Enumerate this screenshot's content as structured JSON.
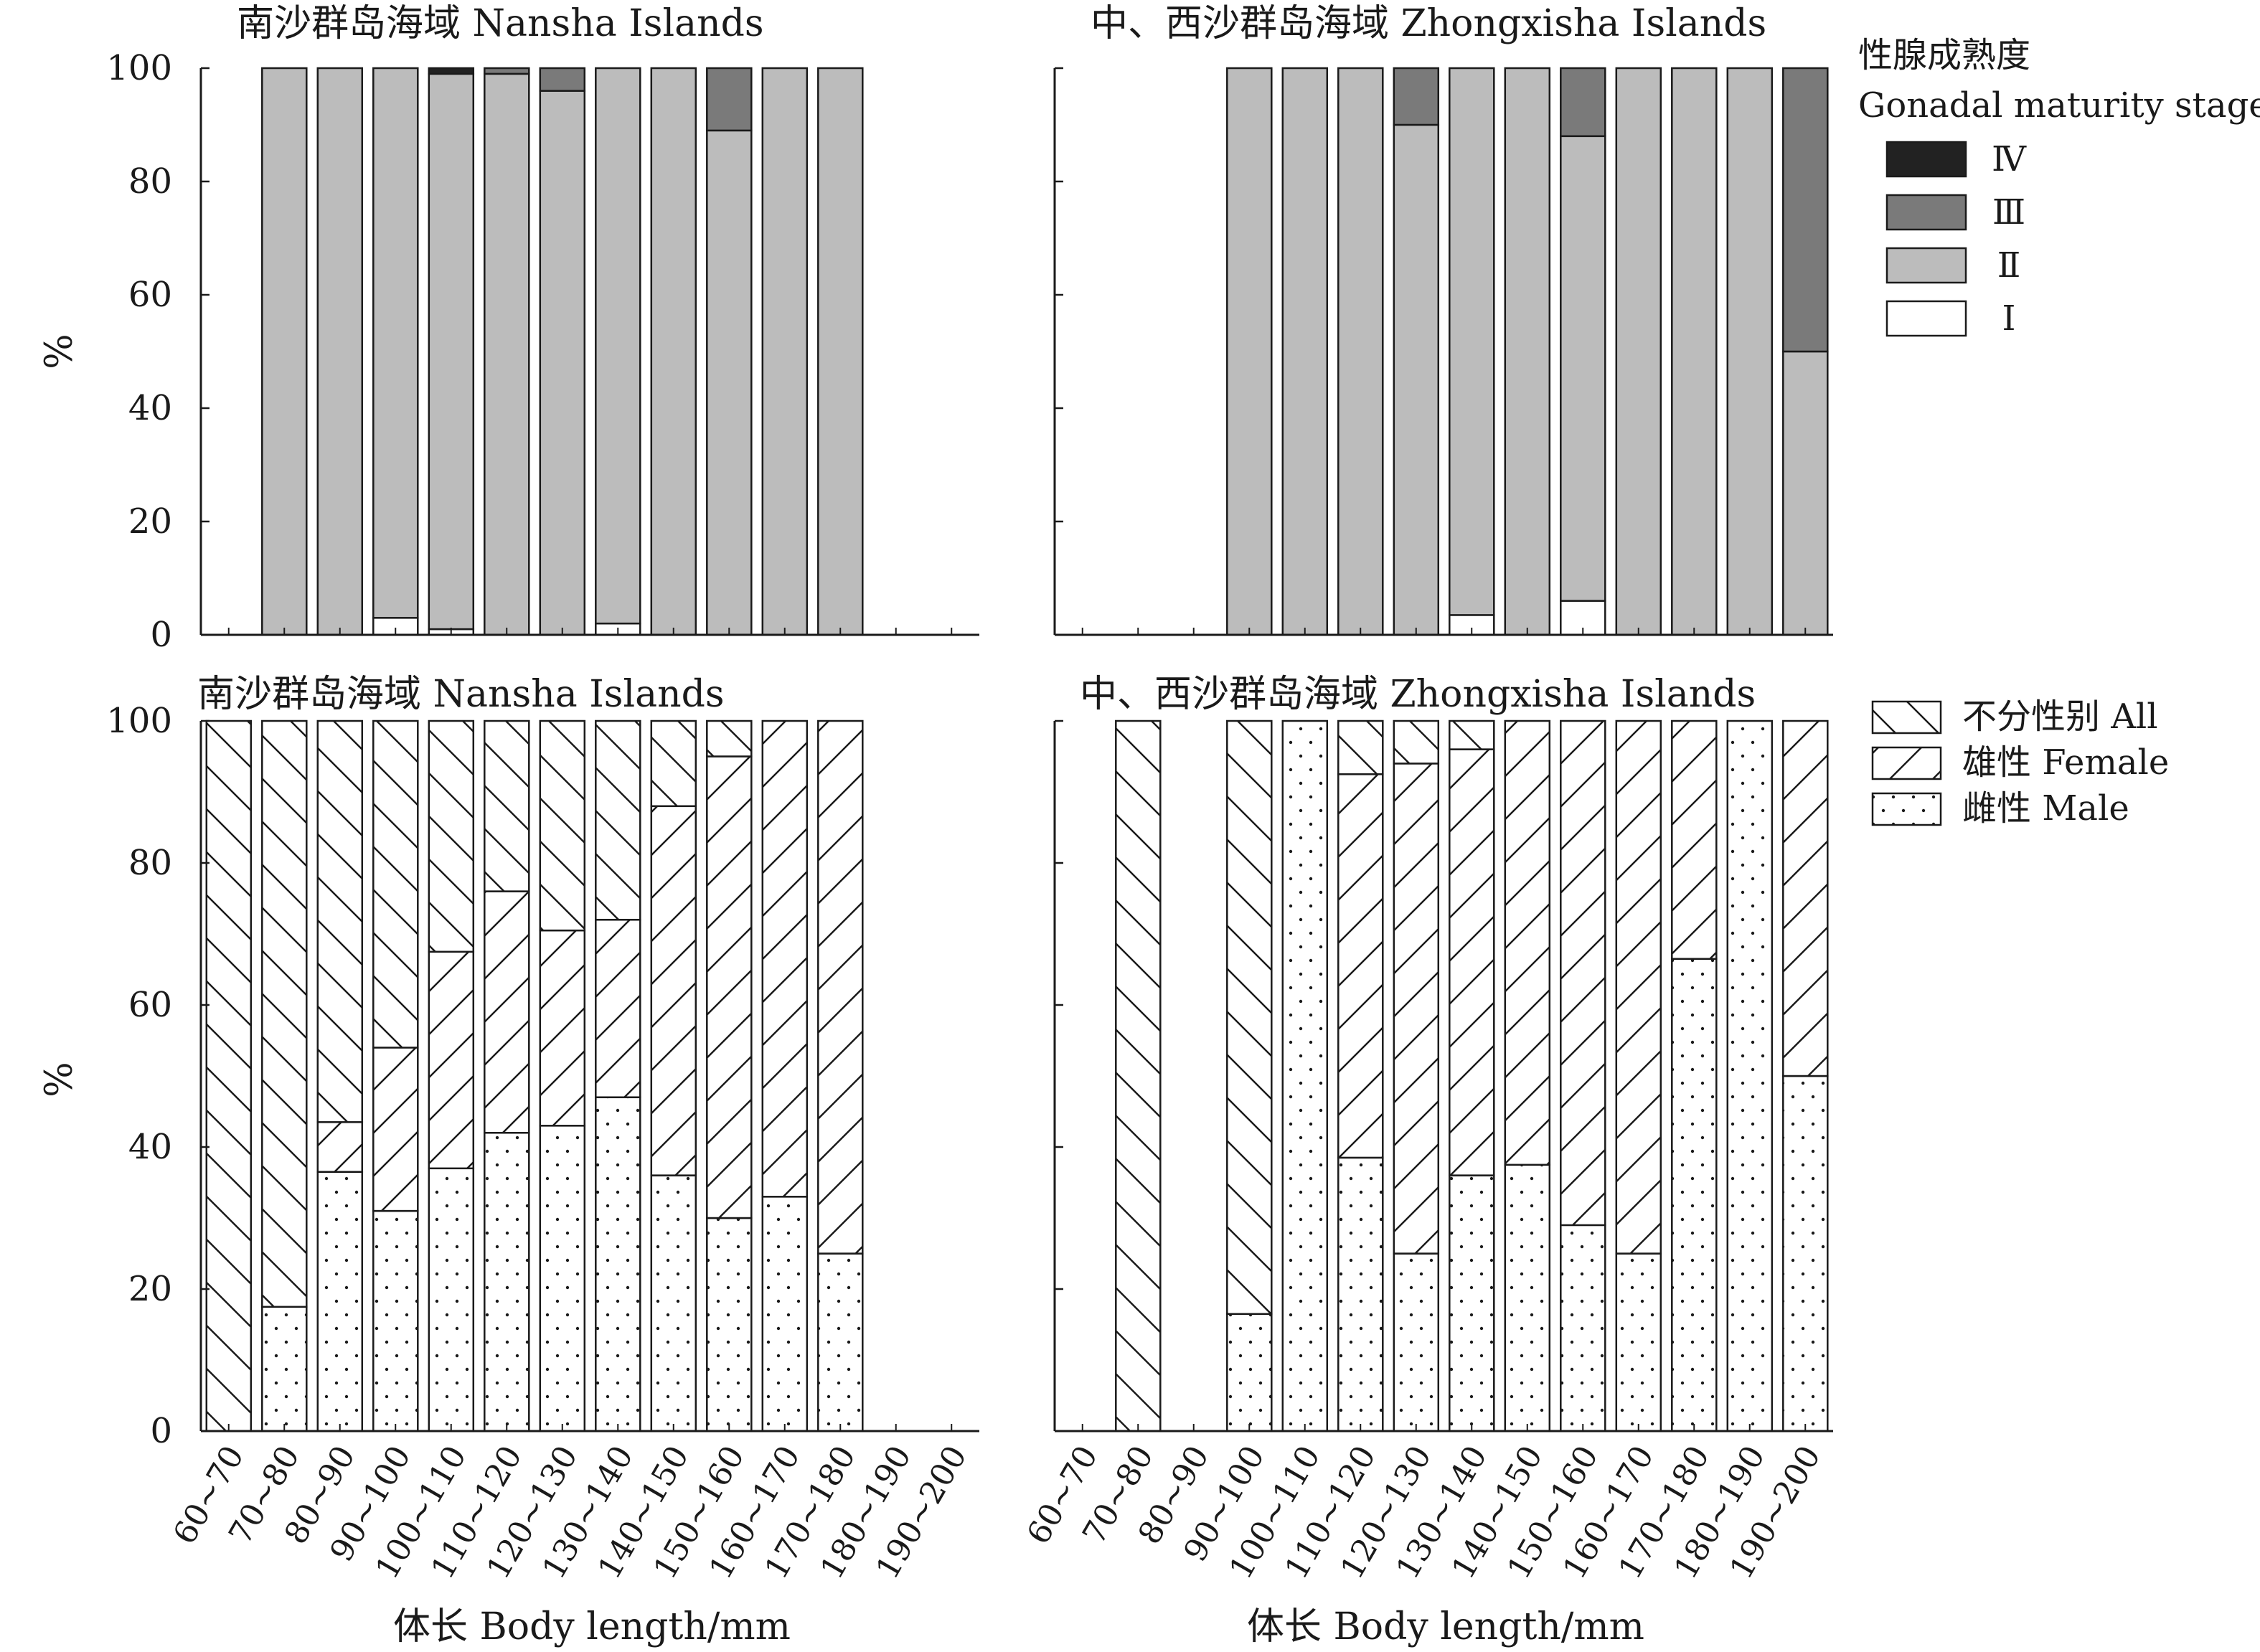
{
  "categories": [
    "60~70",
    "70~80",
    "80~90",
    "90~100",
    "100~110",
    "110~120",
    "120~130",
    "130~140",
    "140~150",
    "150~160",
    "160~170",
    "170~180",
    "180~190",
    "190~200"
  ],
  "colors": {
    "I": "#ffffff",
    "II": "#bcbcbc",
    "III": "#7a7a7a",
    "IV": "#222222",
    "axis": "#1a1a1a"
  },
  "chart_data": [
    {
      "type": "stacked-bar",
      "panel": "top-left",
      "title": "南沙群岛海域 Nansha Islands",
      "ylabel": "%",
      "ylim": [
        0,
        100
      ],
      "yticks": [
        0,
        20,
        40,
        60,
        80,
        100
      ],
      "categories": [
        "60~70",
        "70~80",
        "80~90",
        "90~100",
        "100~110",
        "110~120",
        "120~130",
        "130~140",
        "140~150",
        "150~160",
        "160~170",
        "170~180",
        "180~190",
        "190~200"
      ],
      "series": [
        {
          "name": "Ⅰ",
          "key": "I",
          "values": [
            0,
            0,
            0,
            3,
            1,
            0,
            0,
            2,
            0,
            0,
            0,
            0,
            0,
            0
          ]
        },
        {
          "name": "Ⅱ",
          "key": "II",
          "values": [
            0,
            100,
            100,
            97,
            98,
            99,
            96,
            98,
            100,
            89,
            100,
            100,
            0,
            0
          ]
        },
        {
          "name": "Ⅲ",
          "key": "III",
          "values": [
            0,
            0,
            0,
            0,
            0,
            1,
            4,
            0,
            0,
            11,
            0,
            0,
            0,
            0
          ]
        },
        {
          "name": "Ⅳ",
          "key": "IV",
          "values": [
            0,
            0,
            0,
            0,
            1,
            0,
            0,
            0,
            0,
            0,
            0,
            0,
            0,
            0
          ]
        }
      ]
    },
    {
      "type": "stacked-bar",
      "panel": "top-right",
      "title": "中、西沙群岛海域 Zhongxisha Islands",
      "ylabel": "",
      "ylim": [
        0,
        100
      ],
      "categories": [
        "60~70",
        "70~80",
        "80~90",
        "90~100",
        "100~110",
        "110~120",
        "120~130",
        "130~140",
        "140~150",
        "150~160",
        "160~170",
        "170~180",
        "180~190",
        "190~200"
      ],
      "series": [
        {
          "name": "Ⅰ",
          "key": "I",
          "values": [
            0,
            0,
            0,
            0,
            0,
            0,
            0,
            3.5,
            0,
            6,
            0,
            0,
            0,
            0
          ]
        },
        {
          "name": "Ⅱ",
          "key": "II",
          "values": [
            0,
            0,
            0,
            100,
            100,
            100,
            90,
            96.5,
            100,
            82,
            100,
            100,
            100,
            50
          ]
        },
        {
          "name": "Ⅲ",
          "key": "III",
          "values": [
            0,
            0,
            0,
            0,
            0,
            0,
            10,
            0,
            0,
            12,
            0,
            0,
            0,
            50
          ]
        },
        {
          "name": "Ⅳ",
          "key": "IV",
          "values": [
            0,
            0,
            0,
            0,
            0,
            0,
            0,
            0,
            0,
            0,
            0,
            0,
            0,
            0
          ]
        }
      ]
    },
    {
      "type": "stacked-bar",
      "panel": "bottom-left",
      "title": "南沙群岛海域 Nansha Islands",
      "ylabel": "%",
      "xlabel": "体长 Body length/mm",
      "ylim": [
        0,
        100
      ],
      "yticks": [
        0,
        20,
        40,
        60,
        80,
        100
      ],
      "categories": [
        "60~70",
        "70~80",
        "80~90",
        "90~100",
        "100~110",
        "110~120",
        "120~130",
        "130~140",
        "140~150",
        "150~160",
        "160~170",
        "170~180",
        "180~190",
        "190~200"
      ],
      "series": [
        {
          "name": "雌性 Male",
          "key": "male",
          "values": [
            0,
            17.5,
            36.5,
            31,
            37,
            42,
            43,
            47,
            36,
            30,
            33,
            25,
            0,
            0
          ]
        },
        {
          "name": "雄性 Female",
          "key": "female",
          "values": [
            0,
            0,
            7,
            23,
            30.5,
            34,
            27.5,
            25,
            52,
            65,
            67,
            75,
            0,
            0
          ]
        },
        {
          "name": "不分性别 All",
          "key": "all",
          "values": [
            100,
            82.5,
            56.5,
            46,
            32.5,
            24,
            29.5,
            28,
            12,
            5,
            0,
            0,
            0,
            0
          ]
        }
      ]
    },
    {
      "type": "stacked-bar",
      "panel": "bottom-right",
      "title": "中、西沙群岛海域 Zhongxisha Islands",
      "ylabel": "",
      "xlabel": "体长 Body length/mm",
      "ylim": [
        0,
        100
      ],
      "categories": [
        "60~70",
        "70~80",
        "80~90",
        "90~100",
        "100~110",
        "110~120",
        "120~130",
        "130~140",
        "140~150",
        "150~160",
        "160~170",
        "170~180",
        "180~190",
        "190~200"
      ],
      "series": [
        {
          "name": "雌性 Male",
          "key": "male",
          "values": [
            0,
            0,
            0,
            16.5,
            100,
            38.5,
            25,
            36,
            37.5,
            29,
            25,
            66.5,
            100,
            50
          ]
        },
        {
          "name": "雄性 Female",
          "key": "female",
          "values": [
            0,
            0,
            0,
            0,
            0,
            54,
            69,
            60,
            62.5,
            71,
            75,
            33.5,
            0,
            50
          ]
        },
        {
          "name": "不分性别 All",
          "key": "all",
          "values": [
            0,
            100,
            0,
            83.5,
            0,
            7.5,
            6,
            4,
            0,
            0,
            0,
            0,
            0,
            0
          ]
        }
      ]
    }
  ],
  "legend_top": {
    "title_cn": "性腺成熟度",
    "title_en": "Gonadal maturity stage",
    "items": [
      {
        "label": "Ⅳ",
        "key": "IV"
      },
      {
        "label": "Ⅲ",
        "key": "III"
      },
      {
        "label": "Ⅱ",
        "key": "II"
      },
      {
        "label": "Ⅰ",
        "key": "I"
      }
    ]
  },
  "legend_bottom": {
    "items": [
      {
        "label": "不分性别 All",
        "key": "all"
      },
      {
        "label": "雄性 Female",
        "key": "female"
      },
      {
        "label": "雌性 Male",
        "key": "male"
      }
    ]
  }
}
